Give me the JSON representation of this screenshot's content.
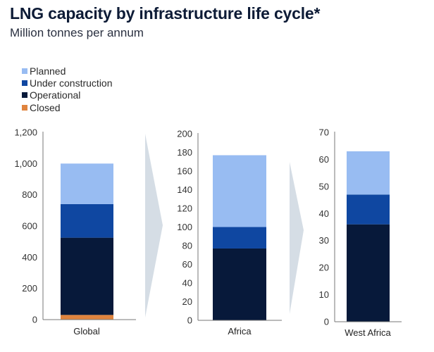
{
  "chart_data": {
    "type": "bar",
    "stacked": true,
    "title": "LNG capacity by infrastructure life cycle*",
    "subtitle": "Million tonnes per annum",
    "legend": {
      "position": "top-left",
      "entries": [
        {
          "name": "Planned",
          "color": "#98bcf2"
        },
        {
          "name": "Under construction",
          "color": "#0f47a1"
        },
        {
          "name": "Operational",
          "color": "#07193a"
        },
        {
          "name": "Closed",
          "color": "#e0843e"
        }
      ]
    },
    "panels": [
      {
        "category": "Global",
        "ylim": [
          0,
          1200
        ],
        "yticks": [
          0,
          200,
          400,
          600,
          800,
          1000,
          1200
        ],
        "ytick_labels": [
          "0",
          "200",
          "400",
          "600",
          "800",
          "1,000",
          "1,200"
        ],
        "series": [
          {
            "name": "Closed",
            "value": 30
          },
          {
            "name": "Operational",
            "value": 495
          },
          {
            "name": "Under construction",
            "value": 215
          },
          {
            "name": "Planned",
            "value": 260
          }
        ]
      },
      {
        "category": "Africa",
        "ylim": [
          0,
          200
        ],
        "yticks": [
          0,
          20,
          40,
          60,
          80,
          100,
          120,
          140,
          160,
          180,
          200
        ],
        "ytick_labels": [
          "0",
          "20",
          "40",
          "60",
          "80",
          "100",
          "120",
          "140",
          "160",
          "180",
          "200"
        ],
        "series": [
          {
            "name": "Closed",
            "value": 0
          },
          {
            "name": "Operational",
            "value": 77
          },
          {
            "name": "Under construction",
            "value": 23
          },
          {
            "name": "Planned",
            "value": 77
          }
        ]
      },
      {
        "category": "West Africa",
        "ylim": [
          0,
          70
        ],
        "yticks": [
          0,
          10,
          20,
          30,
          40,
          50,
          60,
          70
        ],
        "ytick_labels": [
          "0",
          "10",
          "20",
          "30",
          "40",
          "50",
          "60",
          "70"
        ],
        "series": [
          {
            "name": "Closed",
            "value": 0
          },
          {
            "name": "Operational",
            "value": 36
          },
          {
            "name": "Under construction",
            "value": 11
          },
          {
            "name": "Planned",
            "value": 16
          }
        ]
      }
    ],
    "xlabel": "",
    "ylabel": "",
    "grid": false
  }
}
